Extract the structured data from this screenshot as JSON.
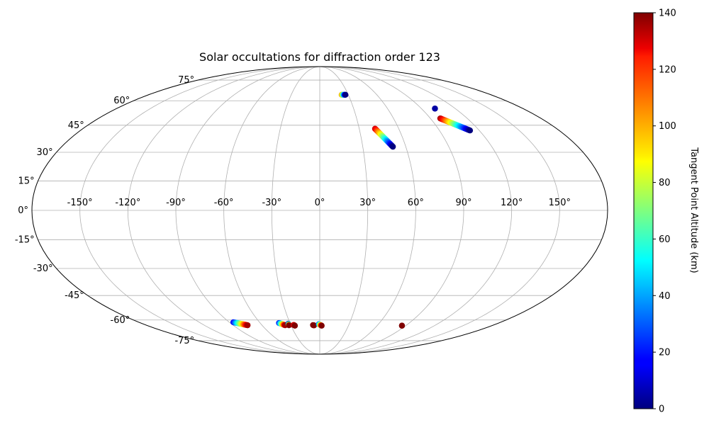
{
  "chart_data": {
    "type": "scatter",
    "projection": "mollweide",
    "title": "Solar occultations for diffraction order 123",
    "lon_ticks": [
      -150,
      -120,
      -90,
      -60,
      -30,
      0,
      30,
      60,
      90,
      120,
      150
    ],
    "lat_ticks": [
      -75,
      -60,
      -45,
      -30,
      -15,
      0,
      15,
      30,
      45,
      60,
      75
    ],
    "lon_tick_labels": [
      "-150°",
      "-120°",
      "-90°",
      "-60°",
      "-30°",
      "0°",
      "30°",
      "60°",
      "90°",
      "120°",
      "150°"
    ],
    "lat_tick_labels": [
      "-75°",
      "-60°",
      "-45°",
      "-30°",
      "-15°",
      "0°",
      "15°",
      "30°",
      "45°",
      "60°",
      "75°"
    ],
    "grid": true,
    "colorbar": {
      "label": "Tangent Point Altitude (km)",
      "min": 0,
      "max": 140,
      "ticks": [
        0,
        20,
        40,
        60,
        80,
        100,
        120,
        140
      ],
      "tick_labels": [
        "0",
        "20",
        "40",
        "60",
        "80",
        "100",
        "120",
        "140"
      ],
      "colormap": "jet",
      "position": "right"
    },
    "occultations": [
      {
        "lon_start": 23,
        "lat_start": 64,
        "alt_start": 100,
        "lon_end": 27,
        "lat_end": 64,
        "alt_end": 0
      },
      {
        "lon_start": 42,
        "lat_start": 43,
        "alt_start": 130,
        "lon_end": 51,
        "lat_end": 33,
        "alt_end": 0
      },
      {
        "lon_start": 98,
        "lat_start": 49,
        "alt_start": 135,
        "lon_end": 113,
        "lat_end": 42,
        "alt_end": 0
      },
      {
        "lon_start": 102,
        "lat_start": 55,
        "alt_start": 5,
        "lon_end": 102,
        "lat_end": 55,
        "alt_end": 5
      },
      {
        "lon_start": -86,
        "lat_start": -61.5,
        "alt_start": 15,
        "lon_end": -75,
        "lat_end": -63.5,
        "alt_end": 135
      },
      {
        "lon_start": -41,
        "lat_start": -62,
        "alt_start": 20,
        "lon_end": -36,
        "lat_end": -63.5,
        "alt_end": 135
      },
      {
        "lon_start": -32,
        "lat_start": -62.5,
        "alt_start": 5,
        "lon_end": -32,
        "lat_end": -63.5,
        "alt_end": 140
      },
      {
        "lon_start": -27,
        "lat_start": -63.3,
        "alt_start": 125,
        "lon_end": -26,
        "lat_end": -63.8,
        "alt_end": 140
      },
      {
        "lon_start": -7,
        "lat_start": -63.4,
        "alt_start": 140,
        "lon_end": -6,
        "lat_end": -63.6,
        "alt_end": 140
      },
      {
        "lon_start": -1,
        "lat_start": -62.8,
        "alt_start": 30,
        "lon_end": 2,
        "lat_end": -63.8,
        "alt_end": 140
      },
      {
        "lon_start": 86,
        "lat_start": -63.8,
        "alt_start": 140,
        "lon_end": 86,
        "lat_end": -63.8,
        "alt_end": 140
      }
    ]
  }
}
